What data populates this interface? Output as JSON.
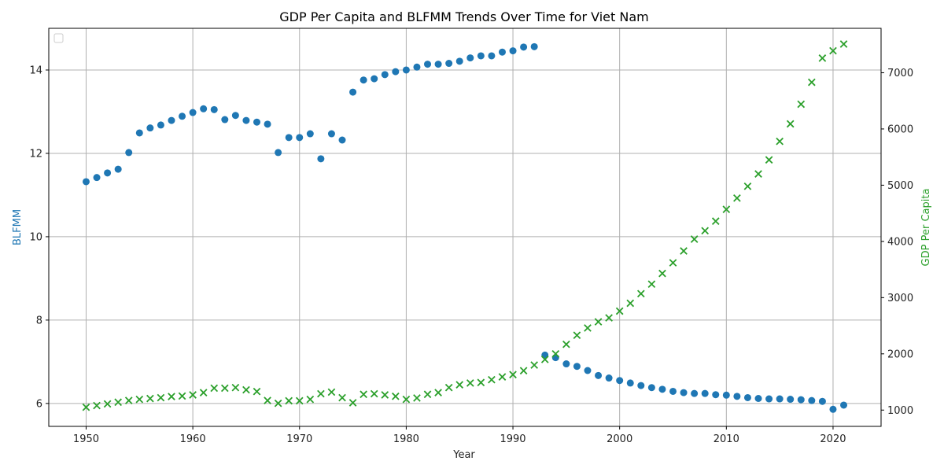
{
  "chart_data": {
    "type": "scatter",
    "title": "GDP Per Capita and BLFMM Trends Over Time for Viet Nam",
    "xlabel": "Year",
    "ylabel_left": "BLFMM",
    "ylabel_right": "GDP Per Capita",
    "xlim": [
      1946.5,
      2024.5
    ],
    "ylim_left": [
      5.45,
      15.0
    ],
    "ylim_right": [
      710,
      7790
    ],
    "x_ticks": [
      1950,
      1960,
      1970,
      1980,
      1990,
      2000,
      2010,
      2020
    ],
    "y_ticks_left": [
      6,
      8,
      10,
      12,
      14
    ],
    "y_ticks_right": [
      1000,
      2000,
      3000,
      4000,
      5000,
      6000,
      7000
    ],
    "grid": true,
    "legend_position": "top-left",
    "colors": {
      "blfmm": "#1f77b4",
      "gdp": "#2ca02c"
    },
    "series": [
      {
        "key": "blfmm",
        "axis": "left",
        "marker": "circle",
        "x": [
          1950,
          1951,
          1952,
          1953,
          1954,
          1955,
          1956,
          1957,
          1958,
          1959,
          1960,
          1961,
          1962,
          1963,
          1964,
          1965,
          1966,
          1967,
          1968,
          1969,
          1970,
          1971,
          1972,
          1973,
          1974,
          1975,
          1976,
          1977,
          1978,
          1979,
          1980,
          1981,
          1982,
          1983,
          1984,
          1985,
          1986,
          1987,
          1988,
          1989,
          1990,
          1991,
          1992,
          1993,
          1994,
          1995,
          1996,
          1997,
          1998,
          1999,
          2000,
          2001,
          2002,
          2003,
          2004,
          2005,
          2006,
          2007,
          2008,
          2009,
          2010,
          2011,
          2012,
          2013,
          2014,
          2015,
          2016,
          2017,
          2018,
          2019,
          2020,
          2021
        ],
        "y": [
          11.32,
          11.42,
          11.53,
          11.62,
          12.02,
          12.49,
          12.61,
          12.68,
          12.79,
          12.89,
          12.98,
          13.07,
          13.05,
          12.81,
          12.91,
          12.79,
          12.75,
          12.7,
          12.02,
          12.38,
          12.38,
          12.47,
          11.87,
          12.47,
          12.32,
          13.47,
          13.76,
          13.79,
          13.89,
          13.96,
          14.0,
          14.07,
          14.14,
          14.14,
          14.16,
          14.21,
          14.29,
          14.34,
          14.34,
          14.43,
          14.46,
          14.55,
          14.56,
          7.16,
          7.1,
          6.95,
          6.89,
          6.79,
          6.67,
          6.61,
          6.55,
          6.49,
          6.43,
          6.38,
          6.34,
          6.29,
          6.26,
          6.24,
          6.24,
          6.21,
          6.2,
          6.17,
          6.14,
          6.12,
          6.11,
          6.11,
          6.1,
          6.09,
          6.07,
          6.05,
          5.86,
          5.96
        ]
      },
      {
        "key": "gdp",
        "axis": "right",
        "marker": "x",
        "x": [
          1950,
          1951,
          1952,
          1953,
          1954,
          1955,
          1956,
          1957,
          1958,
          1959,
          1960,
          1961,
          1962,
          1963,
          1964,
          1965,
          1966,
          1967,
          1968,
          1969,
          1970,
          1971,
          1972,
          1973,
          1974,
          1975,
          1976,
          1977,
          1978,
          1979,
          1980,
          1981,
          1982,
          1983,
          1984,
          1985,
          1986,
          1987,
          1988,
          1989,
          1990,
          1991,
          1992,
          1993,
          1994,
          1995,
          1996,
          1997,
          1998,
          1999,
          2000,
          2001,
          2002,
          2003,
          2004,
          2005,
          2006,
          2007,
          2008,
          2009,
          2010,
          2011,
          2012,
          2013,
          2014,
          2015,
          2016,
          2017,
          2018,
          2019,
          2020,
          2021
        ],
        "y": [
          1050,
          1080,
          1110,
          1140,
          1170,
          1190,
          1205,
          1220,
          1240,
          1250,
          1270,
          1310,
          1390,
          1390,
          1400,
          1360,
          1330,
          1170,
          1120,
          1165,
          1165,
          1190,
          1290,
          1320,
          1220,
          1130,
          1280,
          1290,
          1270,
          1245,
          1190,
          1215,
          1280,
          1310,
          1400,
          1450,
          1480,
          1490,
          1540,
          1590,
          1630,
          1700,
          1800,
          1900,
          2000,
          2170,
          2330,
          2460,
          2570,
          2640,
          2760,
          2900,
          3070,
          3240,
          3430,
          3620,
          3830,
          4040,
          4190,
          4360,
          4570,
          4770,
          4980,
          5200,
          5450,
          5780,
          6090,
          6440,
          6830,
          7260,
          7390,
          7510
        ]
      }
    ]
  }
}
